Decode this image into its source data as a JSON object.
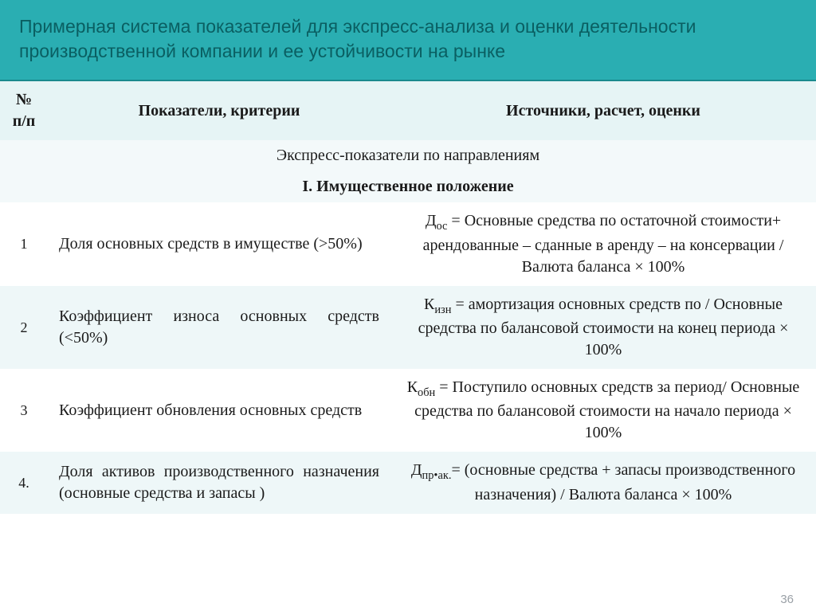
{
  "colors": {
    "title_bg": "#2aaeb2",
    "title_text": "#0a5f62",
    "header_bg": "#e6f4f5",
    "row_even_bg": "#eef7f8",
    "row_odd_bg": "#ffffff",
    "page_num_color": "#9aa0a6"
  },
  "title": "Примерная система показателей для экспресс-анализа и оценки деятельности производственной компании и ее устойчивости на рынке",
  "header": {
    "num": "№ п/п",
    "indicator": "Показатели, критерии",
    "calc": "Источники, расчет, оценки"
  },
  "section1": "Экспресс-показатели по направлениям",
  "section2": "I. Имущественное положение",
  "rows": [
    {
      "n": "1",
      "ind": "Доля основных средств в имуществе (>50%)",
      "calc_prefix": "Д",
      "calc_sub": "ос",
      "calc_rest": " = Основные средства по остаточной стоимости+ арендованные – сданные в аренду – на консервации / Валюта баланса × 100%"
    },
    {
      "n": "2",
      "ind": "Коэффициент износа основных средств (<50%)",
      "calc_prefix": "К",
      "calc_sub": "изн",
      "calc_rest": " = амортизация основных средств по / Основные средства по балансовой стоимости на конец периода × 100%"
    },
    {
      "n": "3",
      "ind": "Коэффициент обновления основных средств",
      "calc_prefix": "К",
      "calc_sub": "обн",
      "calc_rest": " = Поступило основных средств за период/ Основные средства по балансовой стоимости на начало периода × 100%"
    },
    {
      "n": "4.",
      "ind": "Доля активов производственного назначения (основные средства и запасы )",
      "calc_prefix": "Д",
      "calc_sub": "пр•ак.",
      "calc_rest": "= (основные средства + запасы производственного назначения) / Валюта баланса × 100%"
    }
  ],
  "page_number": "36"
}
